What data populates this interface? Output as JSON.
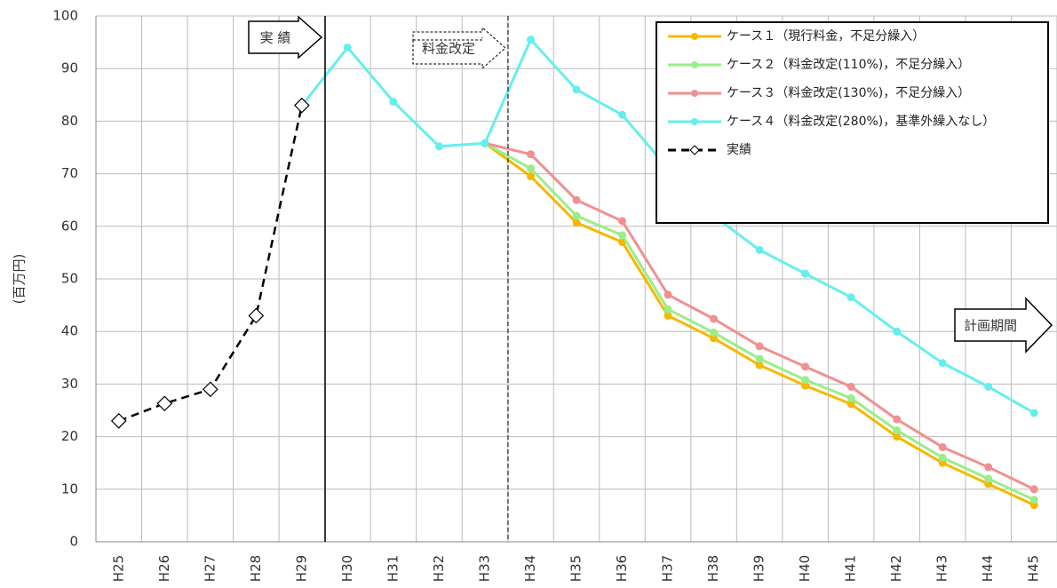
{
  "chart_data": {
    "type": "line",
    "y_label": "(百万円)",
    "categories": [
      "H25",
      "H26",
      "H27",
      "H28",
      "H29",
      "H30",
      "H31",
      "H32",
      "H33",
      "H34",
      "H35",
      "H36",
      "H37",
      "H38",
      "H39",
      "H40",
      "H41",
      "H42",
      "H43",
      "H44",
      "H45"
    ],
    "series": [
      {
        "name": "ケース１（現行料金，不足分繰入）",
        "color": "#f5b800",
        "marker": "circle",
        "style": "solid",
        "values": [
          null,
          null,
          null,
          null,
          null,
          null,
          null,
          null,
          75.8,
          69.5,
          60.7,
          57,
          43,
          38.7,
          33.6,
          29.7,
          26.2,
          20,
          15,
          11,
          7
        ]
      },
      {
        "name": "ケース２（料金改定(110%)，不足分繰入）",
        "color": "#99ee88",
        "marker": "circle",
        "style": "solid",
        "values": [
          null,
          null,
          null,
          null,
          null,
          null,
          null,
          null,
          75.8,
          71,
          62,
          58.3,
          44.2,
          39.8,
          34.8,
          30.8,
          27.3,
          21.2,
          16,
          12,
          8
        ]
      },
      {
        "name": "ケース３（料金改定(130%)，不足分繰入）",
        "color": "#f09090",
        "marker": "circle",
        "style": "solid",
        "values": [
          null,
          null,
          null,
          null,
          null,
          null,
          null,
          null,
          75.8,
          73.7,
          65,
          61,
          47,
          42.4,
          37.2,
          33.3,
          29.5,
          23.3,
          18,
          14.2,
          10
        ]
      },
      {
        "name": "ケース４（料金改定(280%)，基準外繰入なし）",
        "color": "#66eeee",
        "marker": "circle",
        "style": "solid",
        "values": [
          null,
          null,
          null,
          null,
          83,
          94,
          83.7,
          75.2,
          75.8,
          95.5,
          86,
          81.2,
          71,
          62,
          55.5,
          51,
          46.5,
          40,
          34,
          29.5,
          24.5
        ]
      },
      {
        "name": "実績",
        "color": "#000000",
        "marker": "diamond",
        "style": "dashed",
        "values": [
          23,
          26.3,
          29,
          43,
          83,
          null,
          null,
          null,
          null,
          null,
          null,
          null,
          null,
          null,
          null,
          null,
          null,
          null,
          null,
          null,
          null
        ]
      }
    ],
    "ylim": [
      0,
      100
    ],
    "yticks": [
      0,
      10,
      20,
      30,
      40,
      50,
      60,
      70,
      80,
      90,
      100
    ],
    "grid": true,
    "annotations": [
      "実 績",
      "料金改定",
      "計画期間"
    ]
  }
}
